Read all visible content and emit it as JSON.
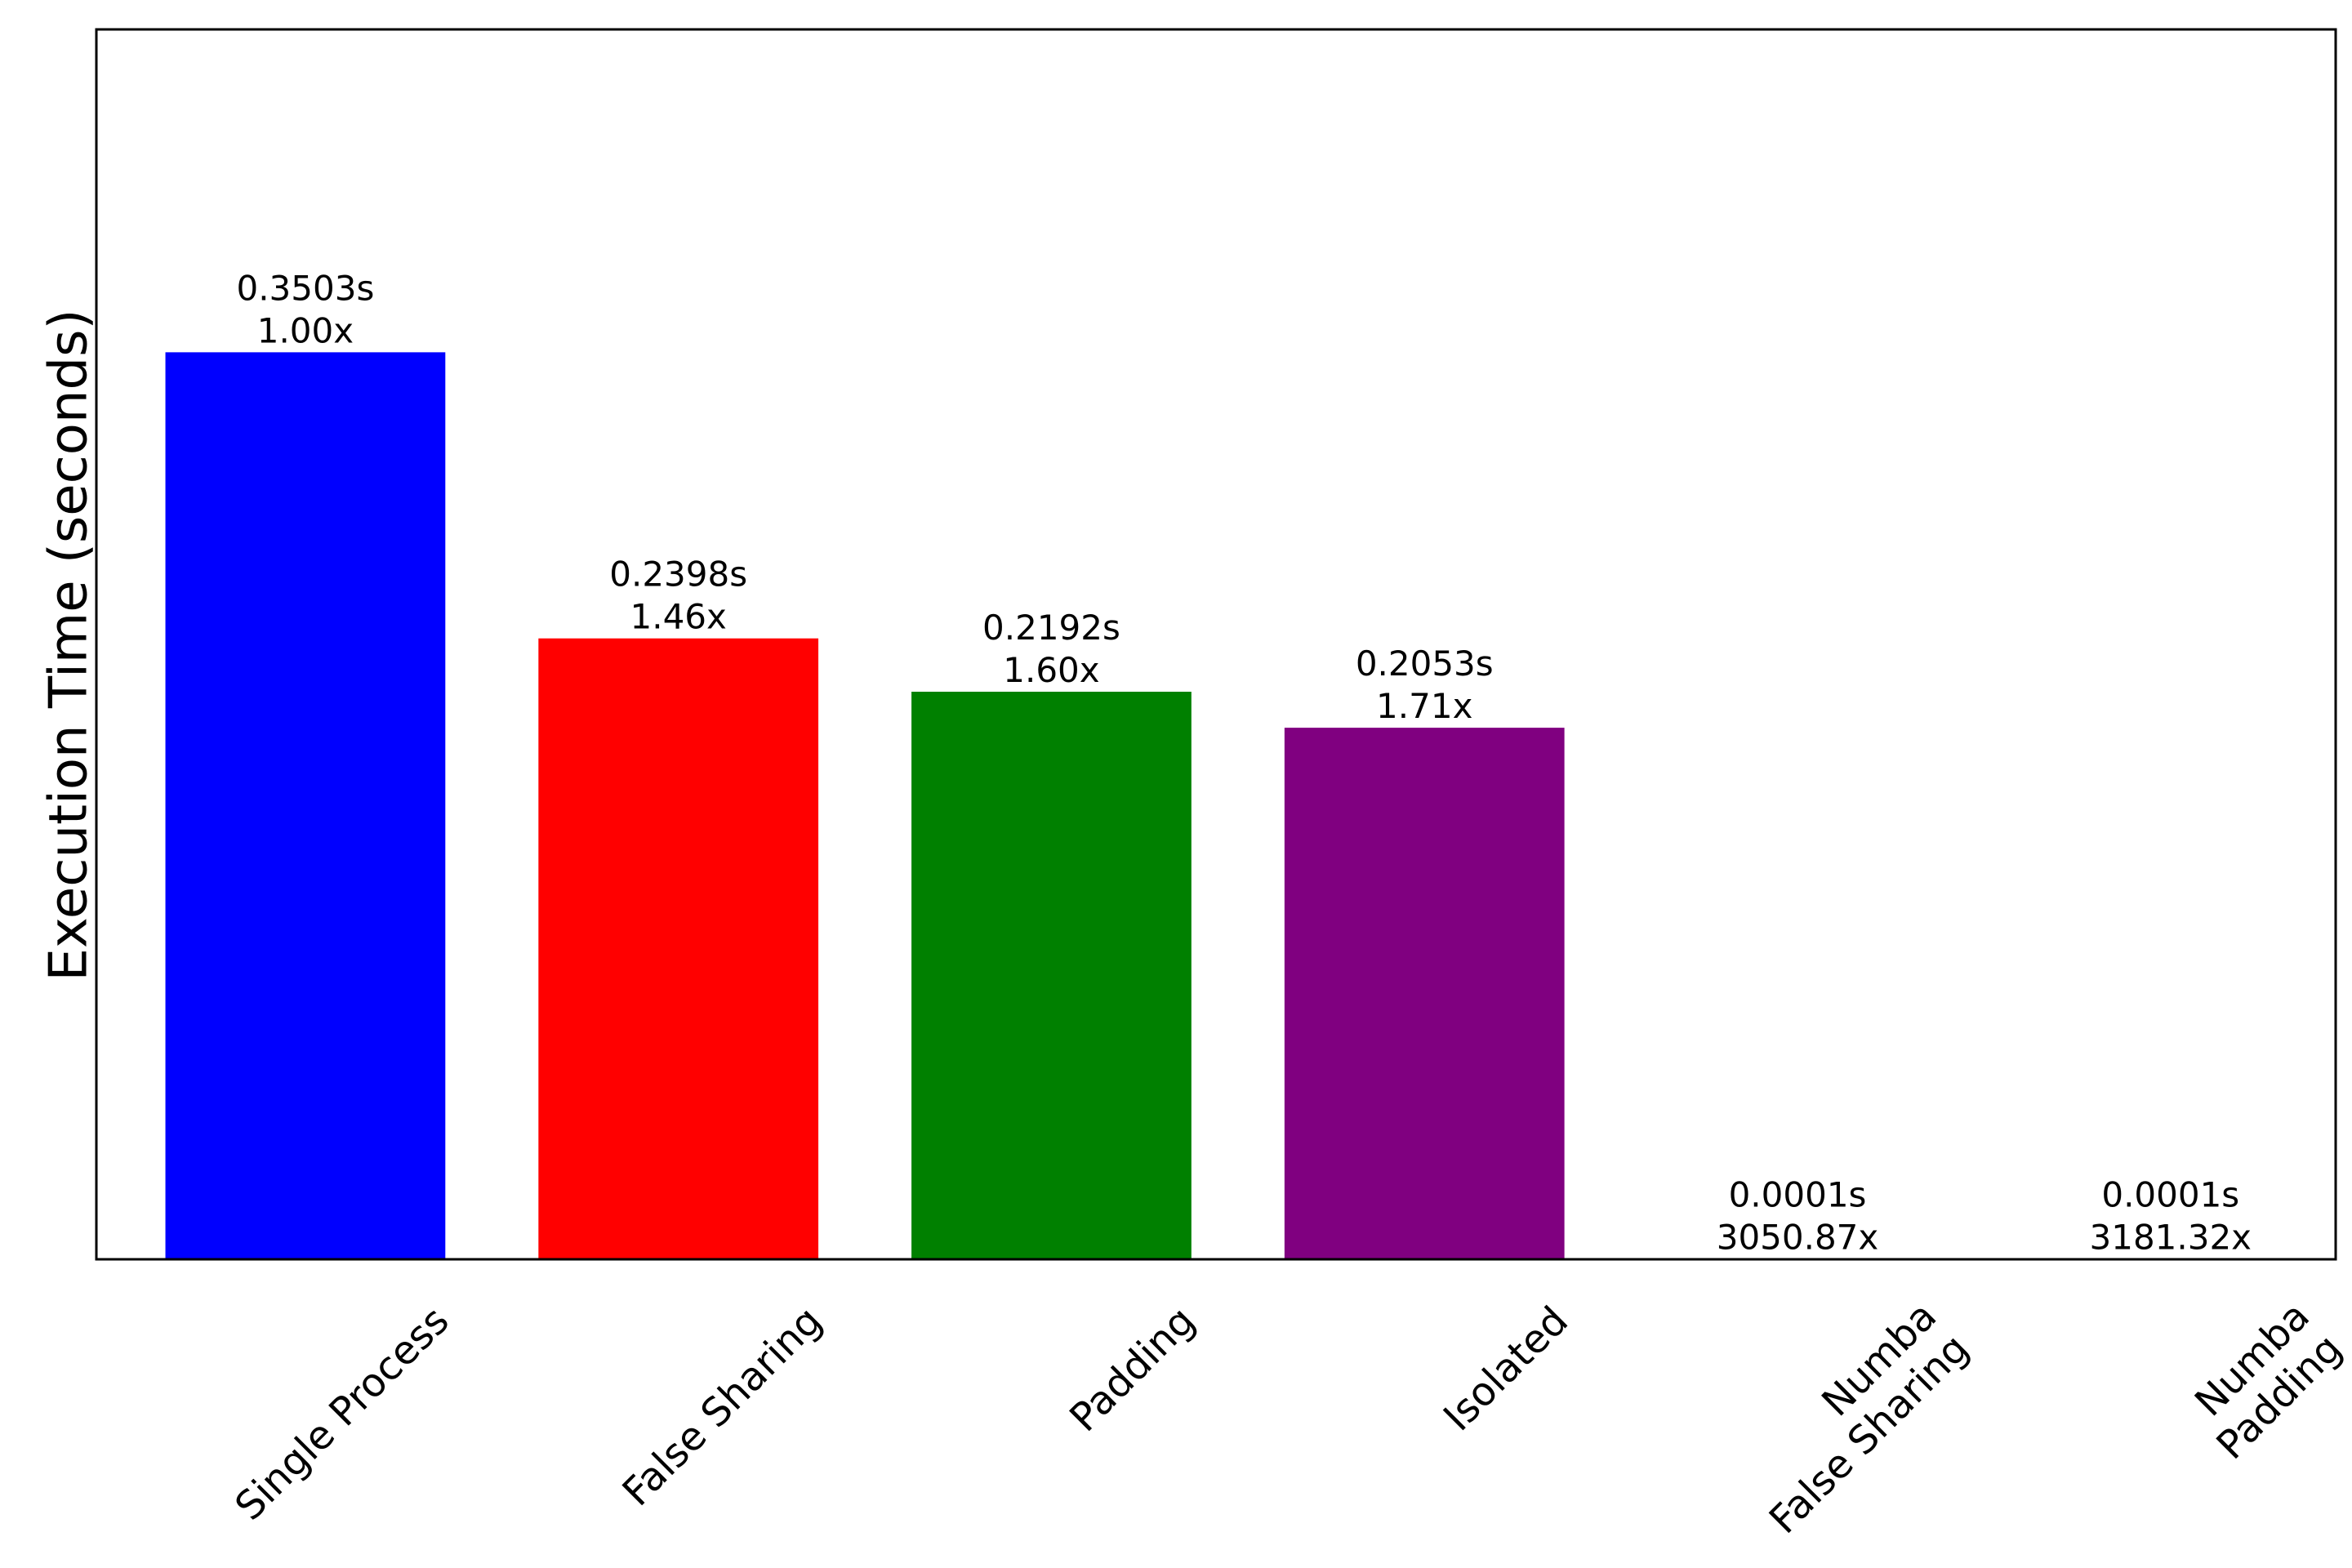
{
  "chart_data": {
    "type": "bar",
    "title": "",
    "xlabel": "",
    "ylabel": "Execution Time (seconds)",
    "ylim": [
      0,
      0.475
    ],
    "grid": false,
    "legend": "none",
    "categories": [
      [
        "Single Process"
      ],
      [
        "False Sharing"
      ],
      [
        "Padding"
      ],
      [
        "Isolated"
      ],
      [
        "Numba",
        "False Sharing"
      ],
      [
        "Numba",
        "Padding"
      ]
    ],
    "values": [
      0.3503,
      0.2398,
      0.2192,
      0.2053,
      0.0001,
      0.0001
    ],
    "time_labels": [
      "0.3503s",
      "0.2398s",
      "0.2192s",
      "0.2053s",
      "0.0001s",
      "0.0001s"
    ],
    "speedup_labels": [
      "1.00x",
      "1.46x",
      "1.60x",
      "1.71x",
      "3050.87x",
      "3181.32x"
    ],
    "colors": [
      "#0000ff",
      "#ff0000",
      "#008000",
      "#800080",
      "#ffffff",
      "#ffffff"
    ]
  }
}
